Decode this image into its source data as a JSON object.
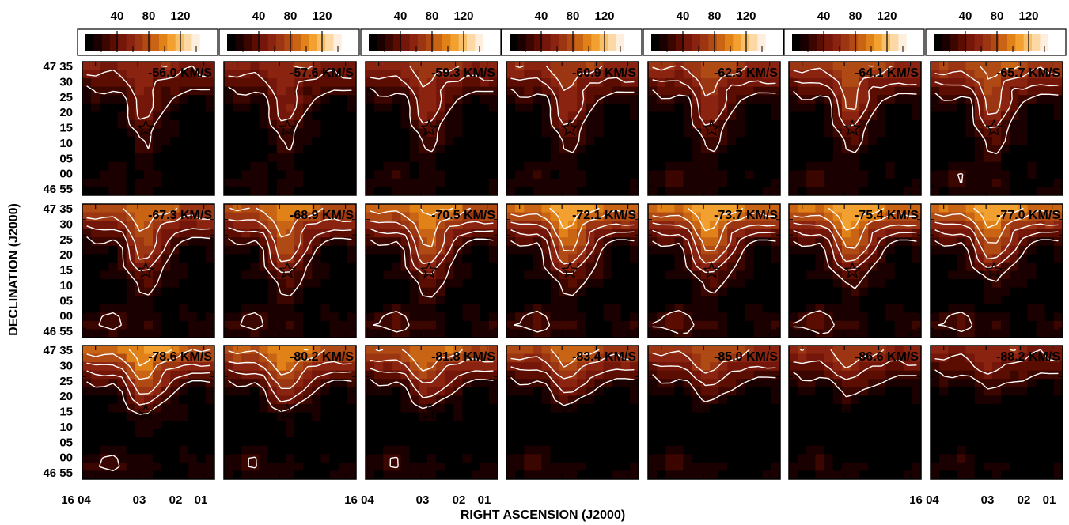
{
  "chart_data": {
    "type": "heatmap",
    "xlabel": "RIGHT ASCENSION (J2000)",
    "ylabel": "DECLINATION (J2000)",
    "colorbar_ticks": [
      "40",
      "80",
      "120"
    ],
    "x_ticks": [
      "16 04",
      "03",
      "02",
      "01"
    ],
    "y_ticks": [
      "47 35",
      "30",
      "25",
      "20",
      "15",
      "10",
      "05",
      "00",
      "46 55"
    ],
    "contour_color": "#ffffff",
    "marker": "star",
    "colormap": [
      "#000000",
      "#1a0000",
      "#3b0500",
      "#5a0d00",
      "#74170a",
      "#8a2410",
      "#9c3512",
      "#b04a14",
      "#c86414",
      "#e08218",
      "#f2a030",
      "#f8bf6a",
      "#fbd8a4",
      "#fdeedd",
      "#ffffff"
    ],
    "panels": [
      {
        "velocity_label": "-56.0 KM/S",
        "peak": 0.4,
        "depth": 0.56,
        "width": 0.5,
        "south": 0.1
      },
      {
        "velocity_label": "-57.6 KM/S",
        "peak": 0.42,
        "depth": 0.56,
        "width": 0.5,
        "south": 0.1
      },
      {
        "velocity_label": "-59.3 KM/S",
        "peak": 0.45,
        "depth": 0.56,
        "width": 0.5,
        "south": 0.12
      },
      {
        "velocity_label": "-60.9 KM/S",
        "peak": 0.47,
        "depth": 0.56,
        "width": 0.5,
        "south": 0.12
      },
      {
        "velocity_label": "-62.5 KM/S",
        "peak": 0.5,
        "depth": 0.54,
        "width": 0.5,
        "south": 0.14
      },
      {
        "velocity_label": "-64.1 KM/S",
        "peak": 0.53,
        "depth": 0.54,
        "width": 0.5,
        "south": 0.14
      },
      {
        "velocity_label": "-65.7 KM/S",
        "peak": 0.56,
        "depth": 0.54,
        "width": 0.5,
        "south": 0.15
      },
      {
        "velocity_label": "-67.3 KM/S",
        "peak": 0.6,
        "depth": 0.52,
        "width": 0.55,
        "south": 0.18
      },
      {
        "velocity_label": "-68.9 KM/S",
        "peak": 0.64,
        "depth": 0.52,
        "width": 0.55,
        "south": 0.18
      },
      {
        "velocity_label": "-70.5 KM/S",
        "peak": 0.68,
        "depth": 0.52,
        "width": 0.55,
        "south": 0.2
      },
      {
        "velocity_label": "-72.1 KM/S",
        "peak": 0.72,
        "depth": 0.5,
        "width": 0.6,
        "south": 0.2
      },
      {
        "velocity_label": "-73.7 KM/S",
        "peak": 0.74,
        "depth": 0.48,
        "width": 0.6,
        "south": 0.22
      },
      {
        "velocity_label": "-75.4 KM/S",
        "peak": 0.74,
        "depth": 0.46,
        "width": 0.6,
        "south": 0.22
      },
      {
        "velocity_label": "-77.0 KM/S",
        "peak": 0.72,
        "depth": 0.44,
        "width": 0.6,
        "south": 0.2
      },
      {
        "velocity_label": "-78.6 KM/S",
        "peak": 0.7,
        "depth": 0.4,
        "width": 0.6,
        "south": 0.18
      },
      {
        "velocity_label": "-80.2 KM/S",
        "peak": 0.66,
        "depth": 0.38,
        "width": 0.6,
        "south": 0.16
      },
      {
        "velocity_label": "-81.8 KM/S",
        "peak": 0.62,
        "depth": 0.36,
        "width": 0.62,
        "south": 0.16
      },
      {
        "velocity_label": "-83.4 KM/S",
        "peak": 0.58,
        "depth": 0.34,
        "width": 0.62,
        "south": 0.15
      },
      {
        "velocity_label": "-85.0 KM/S",
        "peak": 0.52,
        "depth": 0.32,
        "width": 0.62,
        "south": 0.14
      },
      {
        "velocity_label": "-86.6 KM/S",
        "peak": 0.46,
        "depth": 0.3,
        "width": 0.62,
        "south": 0.13
      },
      {
        "velocity_label": "-88.2 KM/S",
        "peak": 0.4,
        "depth": 0.28,
        "width": 0.62,
        "south": 0.12
      }
    ]
  }
}
